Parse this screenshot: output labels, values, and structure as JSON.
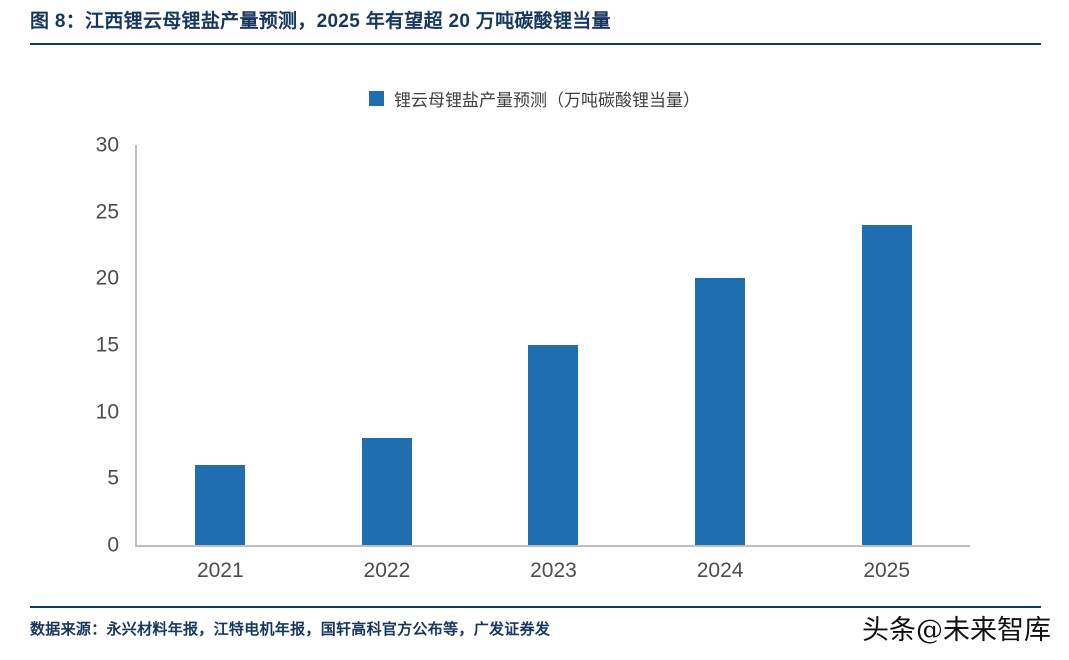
{
  "header": {
    "title": "图 8：江西锂云母锂盐产量预测，2025 年有望超 20 万吨碳酸锂当量"
  },
  "chart_data": {
    "type": "bar",
    "title": "",
    "legend": [
      "锂云母锂盐产量预测（万吨碳酸锂当量）"
    ],
    "legend_position": "top-center",
    "categories": [
      "2021",
      "2022",
      "2023",
      "2024",
      "2025"
    ],
    "values": [
      6,
      8,
      15,
      20,
      24
    ],
    "xlabel": "",
    "ylabel": "",
    "ylim": [
      0,
      30
    ],
    "yticks": [
      0,
      5,
      10,
      15,
      20,
      25,
      30
    ],
    "grid": false,
    "bar_color": "#1F6EB0"
  },
  "footer": {
    "source": "数据来源：永兴材料年报，江特电机年报，国轩高科官方公布等，广发证券发",
    "watermark": "头条@未来智库"
  },
  "colors": {
    "accent_navy": "#17375E",
    "bar_blue": "#1F6EB0",
    "tick_text": "#4d4d4d",
    "axis_line": "#BFBFBF"
  }
}
